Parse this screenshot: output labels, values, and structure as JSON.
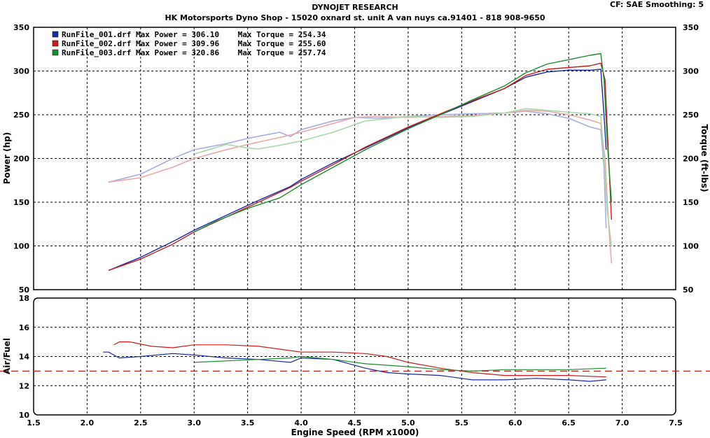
{
  "header": {
    "title": "DYNOJET RESEARCH",
    "subtitle": "HK Motorsports Dyno Shop - 15020 oxnard st. unit A van nuys ca.91401 - 818 908-9650",
    "cf_label": "CF: SAE  Smoothing: 5"
  },
  "colors": {
    "run1": "#1a2aa6",
    "run2": "#c81e1e",
    "run3": "#1e8a2e",
    "grid": "#000000"
  },
  "legend": [
    {
      "name": "RunFile_001.drf Max Power = 306.10    Max Torque = 254.34",
      "color": "#1a2aa6"
    },
    {
      "name": "RunFile_002.drf Max Power = 309.96    Max Torque = 255.60",
      "color": "#c81e1e"
    },
    {
      "name": "RunFile_003.drf Max Power = 320.86    Max Torque = 257.74",
      "color": "#1e8a2e"
    }
  ],
  "chart_data": [
    {
      "type": "line",
      "ylabel": "Power (hp)",
      "ylabel_right": "Torque (ft-lbs)",
      "xlim": [
        1.5,
        7.5
      ],
      "ylim": [
        50,
        350
      ],
      "yticks": [
        "350",
        "300",
        "250",
        "200",
        "150",
        "100",
        "50"
      ],
      "grid": true,
      "legend_position": "top-left",
      "series": [
        {
          "name": "RunFile_001.drf Max Power = 306.10",
          "kind": "power",
          "color": "#1a2aa6",
          "x": [
            2.2,
            2.5,
            2.8,
            3.0,
            3.3,
            3.6,
            3.9,
            4.0,
            4.3,
            4.6,
            5.0,
            5.3,
            5.6,
            5.9,
            6.1,
            6.3,
            6.5,
            6.7,
            6.8,
            6.83,
            6.85
          ],
          "y": [
            72,
            87,
            105,
            118,
            135,
            152,
            168,
            176,
            195,
            212,
            235,
            250,
            265,
            280,
            293,
            299,
            301,
            301,
            302,
            250,
            210
          ]
        },
        {
          "name": "RunFile_002.drf Max Power = 309.96",
          "kind": "power",
          "color": "#c81e1e",
          "x": [
            2.2,
            2.5,
            2.8,
            3.0,
            3.3,
            3.6,
            3.9,
            4.0,
            4.3,
            4.6,
            5.0,
            5.3,
            5.6,
            5.9,
            6.1,
            6.3,
            6.5,
            6.7,
            6.8,
            6.84,
            6.87,
            6.9
          ],
          "y": [
            72,
            85,
            102,
            116,
            133,
            150,
            167,
            174,
            193,
            213,
            236,
            251,
            266,
            280,
            295,
            302,
            304,
            306,
            309,
            290,
            210,
            130
          ]
        },
        {
          "name": "RunFile_003.drf Max Power = 320.86",
          "kind": "power",
          "color": "#1e8a2e",
          "x": [
            3.0,
            3.2,
            3.5,
            3.8,
            4.0,
            4.3,
            4.6,
            5.0,
            5.3,
            5.6,
            5.9,
            6.1,
            6.3,
            6.5,
            6.7,
            6.8,
            6.83,
            6.86,
            6.9
          ],
          "y": [
            116,
            128,
            143,
            155,
            170,
            190,
            210,
            234,
            250,
            267,
            283,
            298,
            308,
            313,
            318,
            320,
            290,
            220,
            150
          ]
        },
        {
          "name": "RunFile_001.drf Max Torque = 254.34",
          "kind": "torque",
          "color": "#a8aee0",
          "x": [
            2.2,
            2.5,
            2.8,
            3.0,
            3.3,
            3.5,
            3.8,
            3.9,
            4.0,
            4.3,
            4.5,
            4.7,
            5.0,
            5.3,
            5.6,
            5.9,
            6.1,
            6.3,
            6.5,
            6.7,
            6.8,
            6.83,
            6.85
          ],
          "y": [
            173,
            182,
            200,
            210,
            217,
            223,
            230,
            225,
            233,
            243,
            247,
            246,
            248,
            250,
            251,
            252,
            254,
            251,
            246,
            236,
            233,
            190,
            120
          ]
        },
        {
          "name": "RunFile_002.drf Max Torque = 255.60",
          "kind": "torque",
          "color": "#e8a8a8",
          "x": [
            2.2,
            2.5,
            2.8,
            3.0,
            3.3,
            3.5,
            3.8,
            4.0,
            4.3,
            4.5,
            4.7,
            5.0,
            5.3,
            5.6,
            5.9,
            6.1,
            6.3,
            6.5,
            6.7,
            6.8,
            6.84,
            6.87,
            6.9
          ],
          "y": [
            173,
            178,
            190,
            200,
            210,
            216,
            224,
            230,
            240,
            247,
            248,
            247,
            248,
            249,
            252,
            255,
            254,
            250,
            244,
            240,
            200,
            130,
            80
          ]
        },
        {
          "name": "RunFile_003.drf Max Torque = 257.74",
          "kind": "torque",
          "color": "#a8d8a8",
          "x": [
            3.0,
            3.3,
            3.5,
            3.6,
            3.8,
            4.0,
            4.3,
            4.6,
            5.0,
            5.3,
            5.6,
            5.9,
            6.1,
            6.3,
            6.5,
            6.7,
            6.8,
            6.83,
            6.86,
            6.9
          ],
          "y": [
            205,
            216,
            212,
            211,
            215,
            220,
            230,
            243,
            248,
            247,
            248,
            252,
            257,
            255,
            253,
            251,
            248,
            200,
            140,
            100
          ]
        }
      ]
    },
    {
      "type": "line",
      "xlabel": "Engine Speed (RPM x1000)",
      "ylabel": "Air/Fuel",
      "xlim": [
        1.5,
        7.5
      ],
      "ylim": [
        10,
        18
      ],
      "xticks": [
        "1.5",
        "2.0",
        "2.5",
        "3.0",
        "3.5",
        "4.0",
        "4.5",
        "5.0",
        "5.5",
        "6.0",
        "6.5",
        "7.0",
        "7.5"
      ],
      "yticks": [
        "18",
        "16",
        "14",
        "12",
        "10"
      ],
      "grid": true,
      "reference_line": 13,
      "series": [
        {
          "name": "RunFile_001.drf",
          "color": "#1a2aa6",
          "x": [
            2.15,
            2.2,
            2.3,
            2.5,
            2.8,
            3.0,
            3.3,
            3.6,
            3.9,
            4.0,
            4.3,
            4.6,
            4.8,
            5.0,
            5.3,
            5.6,
            5.9,
            6.2,
            6.5,
            6.7,
            6.85
          ],
          "y": [
            14.3,
            14.3,
            13.9,
            14.0,
            14.2,
            14.1,
            13.9,
            13.8,
            13.6,
            13.9,
            13.8,
            13.2,
            12.9,
            12.8,
            12.7,
            12.4,
            12.4,
            12.5,
            12.4,
            12.3,
            12.4
          ]
        },
        {
          "name": "RunFile_002.drf",
          "color": "#c81e1e",
          "x": [
            2.25,
            2.3,
            2.4,
            2.6,
            2.8,
            3.0,
            3.3,
            3.6,
            3.9,
            4.0,
            4.3,
            4.6,
            4.8,
            5.0,
            5.3,
            5.6,
            5.9,
            6.2,
            6.5,
            6.85
          ],
          "y": [
            14.8,
            15.0,
            15.0,
            14.7,
            14.6,
            14.8,
            14.8,
            14.7,
            14.4,
            14.3,
            14.3,
            14.2,
            14.0,
            13.6,
            13.2,
            12.9,
            12.7,
            12.7,
            12.7,
            12.6
          ]
        },
        {
          "name": "RunFile_003.drf",
          "color": "#1e8a2e",
          "x": [
            3.0,
            3.3,
            3.6,
            3.9,
            4.0,
            4.3,
            4.6,
            5.0,
            5.3,
            5.6,
            5.9,
            6.2,
            6.5,
            6.85
          ],
          "y": [
            13.6,
            13.7,
            13.8,
            13.9,
            14.0,
            13.8,
            13.5,
            13.3,
            13.1,
            13.0,
            13.1,
            13.1,
            13.1,
            13.2
          ]
        }
      ]
    }
  ]
}
